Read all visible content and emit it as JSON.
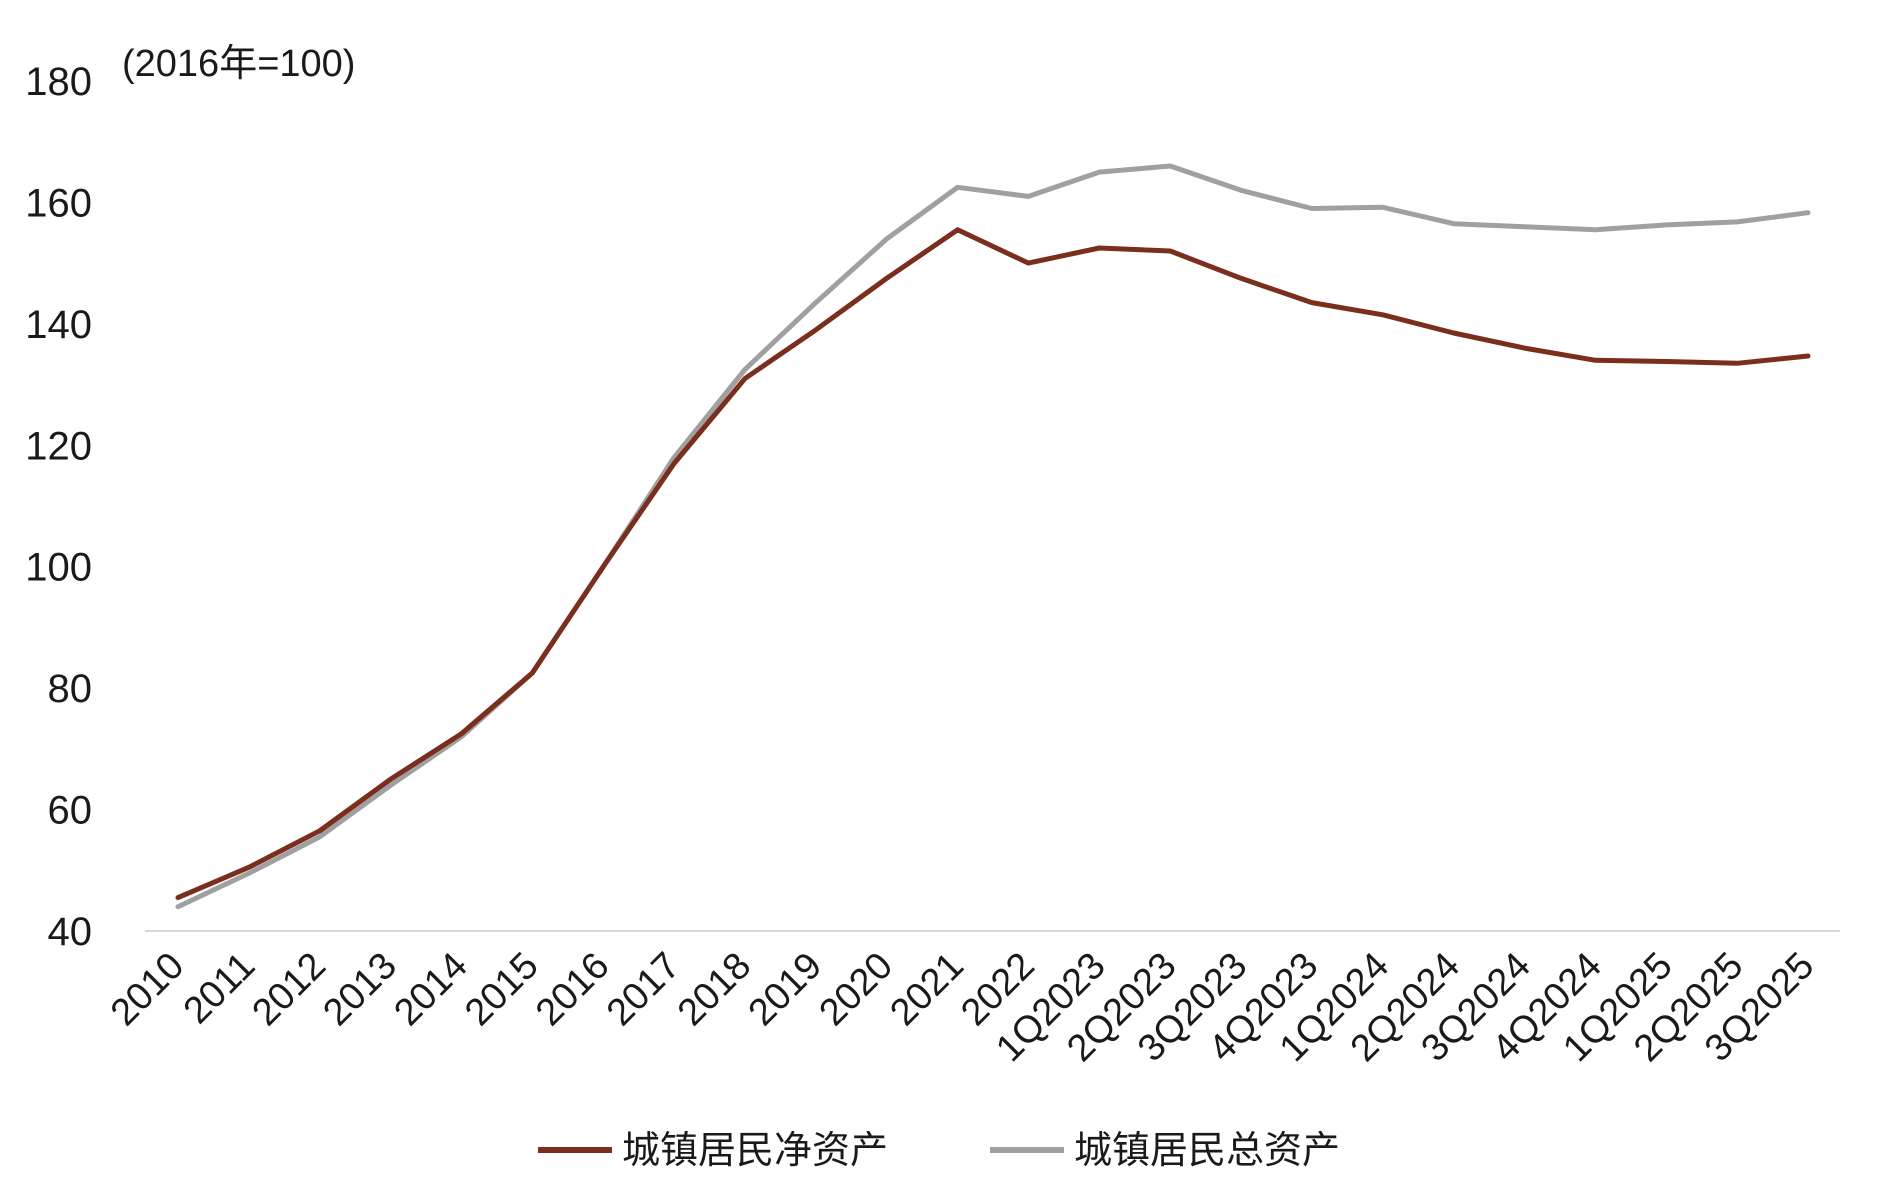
{
  "chart_data": {
    "type": "line",
    "unit_label": "(2016年=100)",
    "ylim": [
      40,
      180
    ],
    "yticks": [
      40,
      60,
      80,
      100,
      120,
      140,
      160,
      180
    ],
    "grid": false,
    "legend_position": "bottom",
    "categories": [
      "2010",
      "2011",
      "2012",
      "2013",
      "2014",
      "2015",
      "2016",
      "2017",
      "2018",
      "2019",
      "2020",
      "2021",
      "2022",
      "1Q2023",
      "2Q2023",
      "3Q2023",
      "4Q2023",
      "1Q2024",
      "2Q2024",
      "3Q2024",
      "4Q2024",
      "1Q2025",
      "2Q2025",
      "3Q2025"
    ],
    "series": [
      {
        "name": "城镇居民净资产",
        "color": "#7a2e1b",
        "values": [
          45.5,
          50.5,
          56.5,
          65,
          72.5,
          82.5,
          100,
          117,
          131,
          139,
          147.5,
          155.5,
          150,
          152.5,
          152,
          147.5,
          143.5,
          141.5,
          138.5,
          136,
          134,
          133.8,
          133.5,
          134.7
        ]
      },
      {
        "name": "城镇居民总资产",
        "color": "#a0a0a0",
        "values": [
          44,
          49.5,
          55.5,
          64,
          72,
          82.5,
          100,
          118,
          132.5,
          143.5,
          154,
          162.5,
          161,
          165,
          166,
          162,
          159,
          159.2,
          156.5,
          156,
          155.5,
          156.3,
          156.8,
          158.3
        ]
      }
    ]
  }
}
